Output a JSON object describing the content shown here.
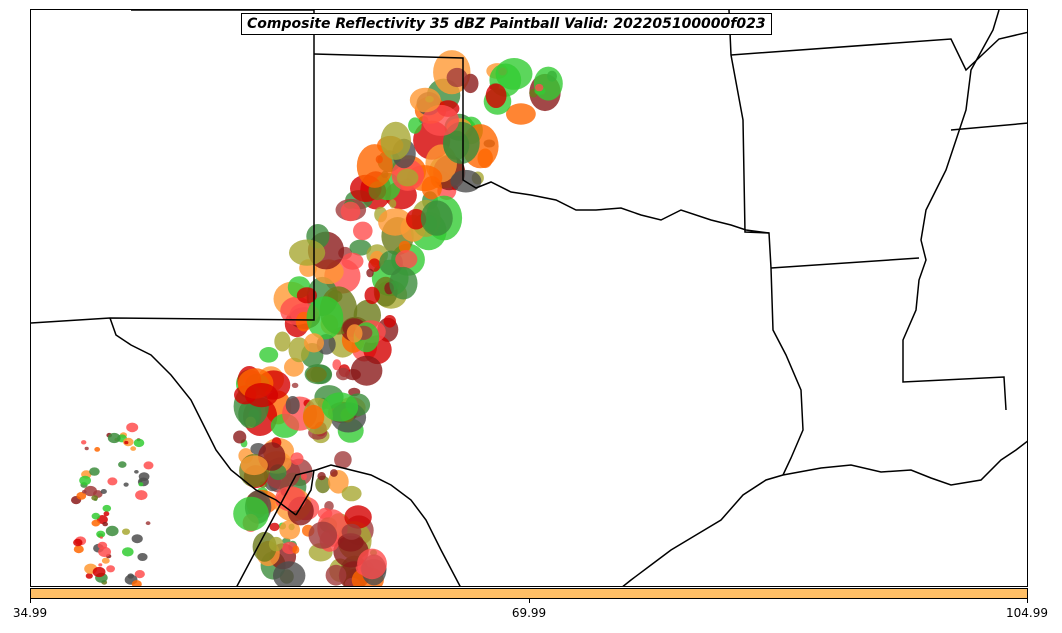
{
  "map": {
    "title": "Composite Reflectivity 35 dBZ Paintball Valid: 202205100000f023",
    "basemap": "US state boundaries and Gulf coastline (TX, OK, AR, LA region)",
    "background_color": "#ffffff",
    "boundary_color": "#000000",
    "member_colors": [
      "#ff4d4d",
      "#a13c3c",
      "#8b1a1a",
      "#3c8c3c",
      "#33cc33",
      "#a8a832",
      "#ff9933",
      "#ff6600",
      "#4d4d4d",
      "#d40000",
      "#6b7a1a"
    ]
  },
  "colorbar": {
    "color": "#ffbf66",
    "ticks": [
      "34.99",
      "69.99",
      "104.99"
    ]
  }
}
